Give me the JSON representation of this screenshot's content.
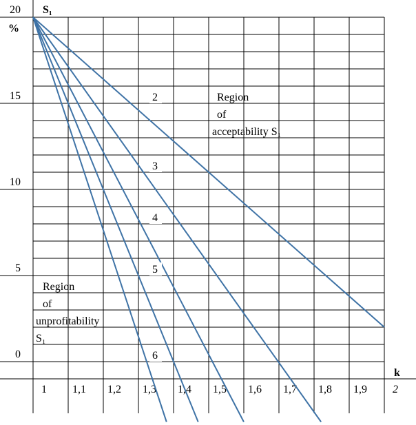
{
  "chart_data": {
    "type": "line",
    "y_label": "S₁",
    "y_unit": "%",
    "x_label": "k",
    "annotations": [
      "Region",
      "of",
      "acceptability S₁",
      "Region",
      "of",
      "unprofitability",
      "S₁"
    ],
    "xlim": [
      1,
      2
    ],
    "ylim": [
      -3.5,
      20
    ],
    "xticks": [
      1,
      {
        "value": 1.1,
        "label": "1,1"
      },
      {
        "value": 1.2,
        "label": "1,2"
      },
      {
        "value": 1.3,
        "label": "1,3"
      },
      {
        "value": 1.4,
        "label": "1,4"
      },
      {
        "value": 1.5,
        "label": "1,5"
      },
      {
        "value": 1.6,
        "label": "1,6"
      },
      {
        "value": 1.7,
        "label": "1,7"
      },
      {
        "value": 1.8,
        "label": "1,8"
      },
      {
        "value": 1.9,
        "label": "1,9"
      },
      2
    ],
    "yticks": [
      0,
      5,
      10,
      15,
      20
    ],
    "grid": true,
    "series": [
      {
        "name": "2",
        "color": "#3f73a6",
        "x": [
          1,
          2
        ],
        "values": [
          20,
          2
        ]
      },
      {
        "name": "3",
        "color": "#3f73a6",
        "x": [
          1,
          1.82
        ],
        "values": [
          20,
          -3.5
        ]
      },
      {
        "name": "4",
        "color": "#3f73a6",
        "x": [
          1,
          1.6
        ],
        "values": [
          20,
          -3.5
        ]
      },
      {
        "name": "5",
        "color": "#3f73a6",
        "x": [
          1,
          1.47
        ],
        "values": [
          20,
          -3.5
        ]
      },
      {
        "name": "6",
        "color": "#3f73a6",
        "x": [
          1,
          1.38
        ],
        "values": [
          20,
          -3.5
        ]
      }
    ]
  }
}
